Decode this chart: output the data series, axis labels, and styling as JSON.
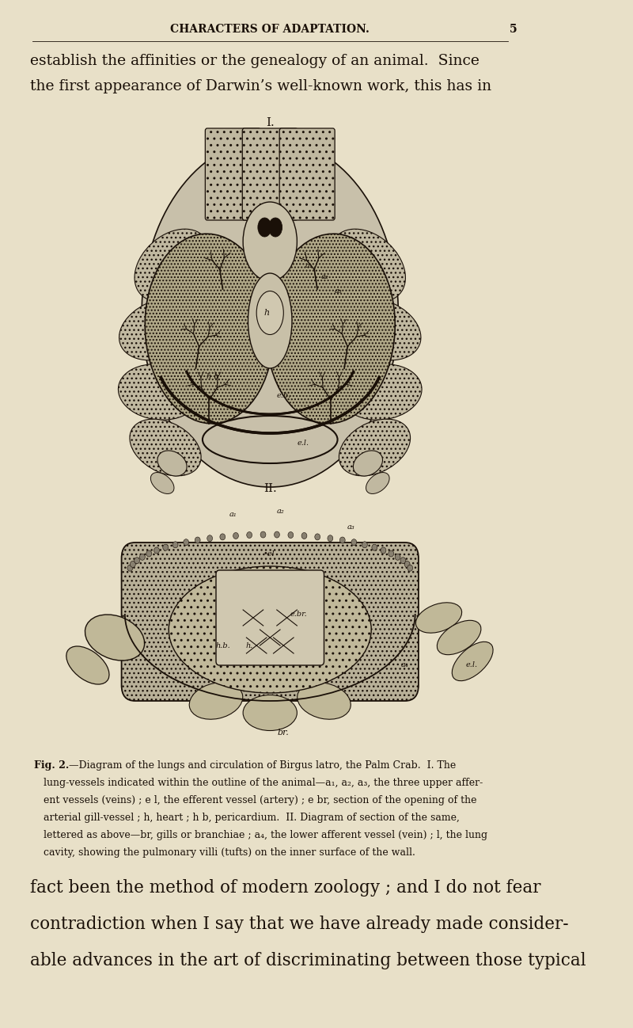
{
  "bg_color": "#e8e0c8",
  "text_color": "#1a1008",
  "page_width": 8.0,
  "page_height": 12.98,
  "header_text": "CHARACTERS OF ADAPTATION.",
  "header_page_num": "5",
  "para1_lines": [
    "establish the affinities or the genealogy of an animal.  Since",
    "the first appearance of Darwin’s well-known work, this has in"
  ],
  "para1_fontsize": 13.5,
  "fig_label_I": "I.",
  "fig_label_II": "II.",
  "caption_title_bold": "Fig. 2.",
  "caption_lines_normal": [
    "—Diagram of the lungs and circulation of ",
    "Birgus latro",
    ", the Palm Crab.  I. The lung-vessels indicated within the outline of the animal—",
    "a",
    "1",
    ", ",
    "a",
    "2",
    ", ",
    "a",
    "3",
    ", the three upper afferent vessels (veins) ; ",
    "e l",
    ", the efferent vessel (artery) ; ",
    "e br",
    ", section of the opening of the arterial gill-vessel ; ",
    "h",
    ", heart ; ",
    "h b",
    ", pericardium.  II. Diagram of section of the same, lettered as above—",
    "br",
    ", gills or branchiae ; ",
    "a",
    "4",
    ", the lower afferent vessel (vein) ; ",
    "l",
    ", the lung cavity, showing the pulmonary villi (tufts) on the inner surface of the wall."
  ],
  "caption_text_wrapped": [
    "Fig. 2.—Diagram of the lungs and circulation of Birgus latro, the Palm Crab.  I. The",
    "lung-vessels indicated within the outline of the animal—a₁, a₂, a₃, the three upper affer-",
    "ent vessels (veins) ; e l, the efferent vessel (artery) ; e br, section of the opening of the",
    "arterial gill-vessel ; h, heart ; h b, pericardium.  II. Diagram of section of the same,",
    "lettered as above—br, gills or branchiae ; a₄, the lower afferent vessel (vein) ; l, the lung",
    "cavity, showing the pulmonary villi (tufts) on the inner surface of the wall."
  ],
  "para2_lines": [
    "fact been the method of modern zoology ; and I do not fear",
    "contradiction when I say that we have already made consider-",
    "able advances in the art of discriminating between those typical"
  ],
  "para2_fontsize": 15.5,
  "stipple_color": "#b8b298",
  "dark_stipple": "#a09880",
  "line_color": "#1a1008",
  "organ_color": "#c8c0a8",
  "lung_bg": "#b0a890"
}
